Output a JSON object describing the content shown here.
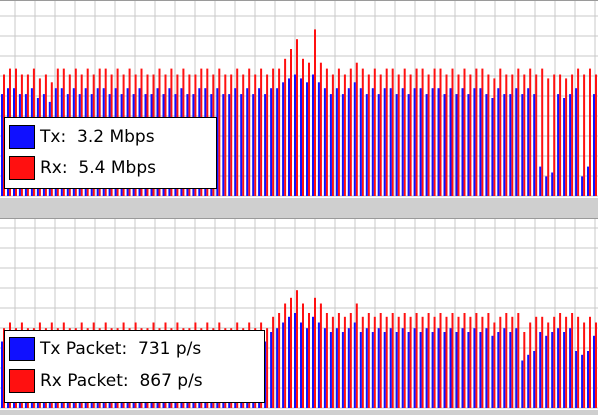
{
  "colors": {
    "tx": "#1010ff",
    "rx": "#ff1010",
    "grid": "#c8c8c8",
    "background": "#ffffff",
    "separator": "#d4d4d4"
  },
  "traffic_graph": {
    "legend": {
      "tx_label": "Tx:",
      "tx_value": "3.2 Mbps",
      "rx_label": "Rx:",
      "rx_value": "5.4 Mbps"
    }
  },
  "packet_graph": {
    "legend": {
      "tx_label": "Tx Packet:",
      "tx_value": "731 p/s",
      "rx_label": "Rx Packet:",
      "rx_value": "867 p/s"
    }
  },
  "chart_data": [
    {
      "type": "bar",
      "series": [
        {
          "name": "Tx",
          "values": [
            0.52,
            0.55,
            0.55,
            0.52,
            0.52,
            0.55,
            0.5,
            0.52,
            0.48,
            0.55,
            0.55,
            0.52,
            0.55,
            0.52,
            0.55,
            0.52,
            0.55,
            0.55,
            0.52,
            0.55,
            0.52,
            0.55,
            0.52,
            0.55,
            0.52,
            0.52,
            0.55,
            0.52,
            0.55,
            0.52,
            0.55,
            0.52,
            0.52,
            0.55,
            0.55,
            0.52,
            0.55,
            0.52,
            0.52,
            0.55,
            0.52,
            0.55,
            0.52,
            0.55,
            0.52,
            0.55,
            0.55,
            0.58,
            0.6,
            0.62,
            0.6,
            0.58,
            0.62,
            0.58,
            0.55,
            0.52,
            0.55,
            0.52,
            0.55,
            0.58,
            0.55,
            0.52,
            0.55,
            0.52,
            0.55,
            0.55,
            0.52,
            0.55,
            0.52,
            0.55,
            0.55,
            0.52,
            0.55,
            0.55,
            0.52,
            0.55,
            0.52,
            0.55,
            0.52,
            0.55,
            0.55,
            0.52,
            0.5,
            0.55,
            0.52,
            0.52,
            0.55,
            0.52,
            0.55,
            0.52,
            0.15,
            0.1,
            0.12,
            0.52,
            0.5,
            0.52,
            0.55,
            0.1,
            0.15,
            0.52
          ]
        },
        {
          "name": "Rx",
          "values": [
            0.62,
            0.65,
            0.65,
            0.62,
            0.62,
            0.65,
            0.6,
            0.62,
            0.58,
            0.65,
            0.65,
            0.62,
            0.65,
            0.62,
            0.65,
            0.62,
            0.65,
            0.65,
            0.62,
            0.65,
            0.62,
            0.65,
            0.62,
            0.65,
            0.62,
            0.62,
            0.65,
            0.62,
            0.65,
            0.62,
            0.65,
            0.62,
            0.62,
            0.65,
            0.65,
            0.62,
            0.65,
            0.62,
            0.62,
            0.65,
            0.62,
            0.65,
            0.62,
            0.65,
            0.62,
            0.65,
            0.65,
            0.7,
            0.75,
            0.8,
            0.7,
            0.68,
            0.85,
            0.68,
            0.65,
            0.62,
            0.65,
            0.62,
            0.65,
            0.68,
            0.65,
            0.62,
            0.65,
            0.62,
            0.65,
            0.65,
            0.62,
            0.65,
            0.62,
            0.65,
            0.65,
            0.62,
            0.65,
            0.65,
            0.62,
            0.65,
            0.62,
            0.65,
            0.62,
            0.65,
            0.65,
            0.62,
            0.6,
            0.65,
            0.62,
            0.62,
            0.65,
            0.62,
            0.65,
            0.62,
            0.65,
            0.6,
            0.62,
            0.62,
            0.6,
            0.62,
            0.65,
            0.62,
            0.65,
            0.62
          ]
        }
      ],
      "grid": true,
      "legend_position": "bottom-left"
    },
    {
      "type": "bar",
      "series": [
        {
          "name": "Tx Packet",
          "values": [
            0.35,
            0.38,
            0.35,
            0.38,
            0.35,
            0.35,
            0.38,
            0.35,
            0.38,
            0.35,
            0.38,
            0.35,
            0.35,
            0.38,
            0.35,
            0.38,
            0.35,
            0.38,
            0.35,
            0.35,
            0.38,
            0.35,
            0.38,
            0.35,
            0.35,
            0.38,
            0.35,
            0.38,
            0.35,
            0.38,
            0.35,
            0.35,
            0.38,
            0.35,
            0.38,
            0.35,
            0.38,
            0.35,
            0.35,
            0.38,
            0.35,
            0.38,
            0.35,
            0.38,
            0.35,
            0.4,
            0.42,
            0.45,
            0.48,
            0.5,
            0.45,
            0.42,
            0.48,
            0.45,
            0.42,
            0.4,
            0.42,
            0.4,
            0.42,
            0.45,
            0.4,
            0.42,
            0.4,
            0.42,
            0.4,
            0.42,
            0.4,
            0.42,
            0.4,
            0.42,
            0.4,
            0.42,
            0.4,
            0.42,
            0.4,
            0.42,
            0.4,
            0.42,
            0.4,
            0.42,
            0.4,
            0.42,
            0.38,
            0.4,
            0.42,
            0.4,
            0.42,
            0.25,
            0.28,
            0.3,
            0.4,
            0.38,
            0.4,
            0.42,
            0.4,
            0.42,
            0.3,
            0.28,
            0.3,
            0.38
          ]
        },
        {
          "name": "Rx Packet",
          "values": [
            0.42,
            0.45,
            0.42,
            0.45,
            0.42,
            0.42,
            0.45,
            0.42,
            0.45,
            0.42,
            0.45,
            0.42,
            0.42,
            0.45,
            0.42,
            0.45,
            0.42,
            0.45,
            0.42,
            0.42,
            0.45,
            0.42,
            0.45,
            0.42,
            0.42,
            0.45,
            0.42,
            0.45,
            0.42,
            0.45,
            0.42,
            0.42,
            0.45,
            0.42,
            0.45,
            0.42,
            0.45,
            0.42,
            0.42,
            0.45,
            0.42,
            0.45,
            0.42,
            0.45,
            0.42,
            0.48,
            0.5,
            0.55,
            0.58,
            0.62,
            0.55,
            0.5,
            0.58,
            0.55,
            0.5,
            0.48,
            0.5,
            0.48,
            0.5,
            0.55,
            0.48,
            0.5,
            0.48,
            0.5,
            0.48,
            0.5,
            0.48,
            0.5,
            0.48,
            0.5,
            0.48,
            0.5,
            0.48,
            0.5,
            0.48,
            0.5,
            0.48,
            0.5,
            0.48,
            0.5,
            0.48,
            0.5,
            0.45,
            0.48,
            0.5,
            0.48,
            0.5,
            0.4,
            0.45,
            0.48,
            0.48,
            0.45,
            0.48,
            0.5,
            0.48,
            0.5,
            0.48,
            0.45,
            0.48,
            0.45
          ]
        }
      ],
      "grid": true,
      "legend_position": "bottom-left"
    }
  ]
}
